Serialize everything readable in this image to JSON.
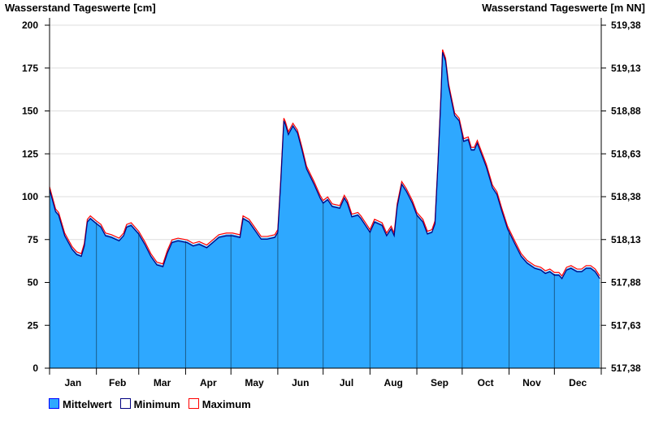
{
  "chart_data": {
    "type": "area",
    "title_left": "Wasserstand Tageswerte [cm]",
    "title_right": "Wasserstand Tageswerte [m NN]",
    "ylim": [
      0,
      200
    ],
    "yticks": [
      "0",
      "25",
      "50",
      "75",
      "100",
      "125",
      "150",
      "175",
      "200"
    ],
    "yticks_right": [
      "517,38",
      "517,63",
      "517,88",
      "518,13",
      "518,38",
      "518,63",
      "518,88",
      "519,13",
      "519,38"
    ],
    "months": [
      "Jan",
      "Feb",
      "Mar",
      "Apr",
      "May",
      "Jun",
      "Jul",
      "Aug",
      "Sep",
      "Oct",
      "Nov",
      "Dec"
    ],
    "month_days": [
      31,
      28,
      31,
      30,
      31,
      30,
      31,
      31,
      30,
      31,
      30,
      31
    ],
    "xlim": [
      0,
      365
    ],
    "grid": true,
    "legend": [
      {
        "label": "Mittelwert",
        "color": "#2ea8ff",
        "border": "#0000ff"
      },
      {
        "label": "Minimum",
        "color": "#ffffff",
        "border": "#000080"
      },
      {
        "label": "Maximum",
        "color": "#ffffff",
        "border": "#ff0000"
      }
    ],
    "legend_position": "bottom-left",
    "colors": {
      "fill": "#2ea8ff",
      "min": "#000080",
      "max": "#ff0000",
      "grid": "#dddddd"
    },
    "min_offset": -0.8,
    "max_offset": 0.8,
    "mean": [
      [
        0,
        105
      ],
      [
        4,
        92
      ],
      [
        6,
        90
      ],
      [
        10,
        78
      ],
      [
        15,
        70
      ],
      [
        18,
        67
      ],
      [
        21,
        66
      ],
      [
        23,
        72
      ],
      [
        25,
        86
      ],
      [
        27,
        88
      ],
      [
        31,
        85
      ],
      [
        34,
        83
      ],
      [
        37,
        78
      ],
      [
        41,
        77
      ],
      [
        46,
        75
      ],
      [
        49,
        78
      ],
      [
        51,
        83
      ],
      [
        54,
        84
      ],
      [
        59,
        79
      ],
      [
        63,
        73
      ],
      [
        67,
        66
      ],
      [
        71,
        61
      ],
      [
        75,
        60
      ],
      [
        78,
        68
      ],
      [
        81,
        74
      ],
      [
        85,
        75
      ],
      [
        91,
        74
      ],
      [
        95,
        72
      ],
      [
        99,
        73
      ],
      [
        104,
        71
      ],
      [
        108,
        74
      ],
      [
        112,
        77
      ],
      [
        117,
        78
      ],
      [
        121,
        78
      ],
      [
        126,
        77
      ],
      [
        128,
        88
      ],
      [
        132,
        86
      ],
      [
        136,
        81
      ],
      [
        140,
        76
      ],
      [
        144,
        76
      ],
      [
        149,
        77
      ],
      [
        151,
        80
      ],
      [
        153,
        110
      ],
      [
        155,
        145
      ],
      [
        156,
        143
      ],
      [
        158,
        137
      ],
      [
        161,
        142
      ],
      [
        164,
        138
      ],
      [
        167,
        128
      ],
      [
        170,
        117
      ],
      [
        175,
        108
      ],
      [
        179,
        100
      ],
      [
        181,
        97
      ],
      [
        184,
        99
      ],
      [
        187,
        95
      ],
      [
        192,
        94
      ],
      [
        195,
        100
      ],
      [
        197,
        97
      ],
      [
        200,
        89
      ],
      [
        204,
        90
      ],
      [
        206,
        88
      ],
      [
        209,
        84
      ],
      [
        212,
        80
      ],
      [
        215,
        86
      ],
      [
        220,
        84
      ],
      [
        223,
        78
      ],
      [
        226,
        82
      ],
      [
        228,
        78
      ],
      [
        230,
        95
      ],
      [
        233,
        108
      ],
      [
        236,
        104
      ],
      [
        240,
        97
      ],
      [
        243,
        90
      ],
      [
        247,
        86
      ],
      [
        250,
        79
      ],
      [
        253,
        80
      ],
      [
        255,
        85
      ],
      [
        257,
        120
      ],
      [
        259,
        160
      ],
      [
        260,
        185
      ],
      [
        262,
        180
      ],
      [
        264,
        165
      ],
      [
        268,
        148
      ],
      [
        271,
        145
      ],
      [
        274,
        133
      ],
      [
        277,
        134
      ],
      [
        279,
        128
      ],
      [
        281,
        128
      ],
      [
        283,
        132
      ],
      [
        286,
        125
      ],
      [
        289,
        118
      ],
      [
        293,
        106
      ],
      [
        296,
        102
      ],
      [
        299,
        93
      ],
      [
        303,
        82
      ],
      [
        308,
        73
      ],
      [
        312,
        66
      ],
      [
        316,
        62
      ],
      [
        321,
        59
      ],
      [
        325,
        58
      ],
      [
        328,
        56
      ],
      [
        331,
        57
      ],
      [
        334,
        55
      ],
      [
        337,
        55
      ],
      [
        339,
        53
      ],
      [
        342,
        58
      ],
      [
        345,
        59
      ],
      [
        349,
        57
      ],
      [
        352,
        57
      ],
      [
        355,
        59
      ],
      [
        358,
        59
      ],
      [
        361,
        57
      ],
      [
        364,
        53
      ]
    ]
  }
}
